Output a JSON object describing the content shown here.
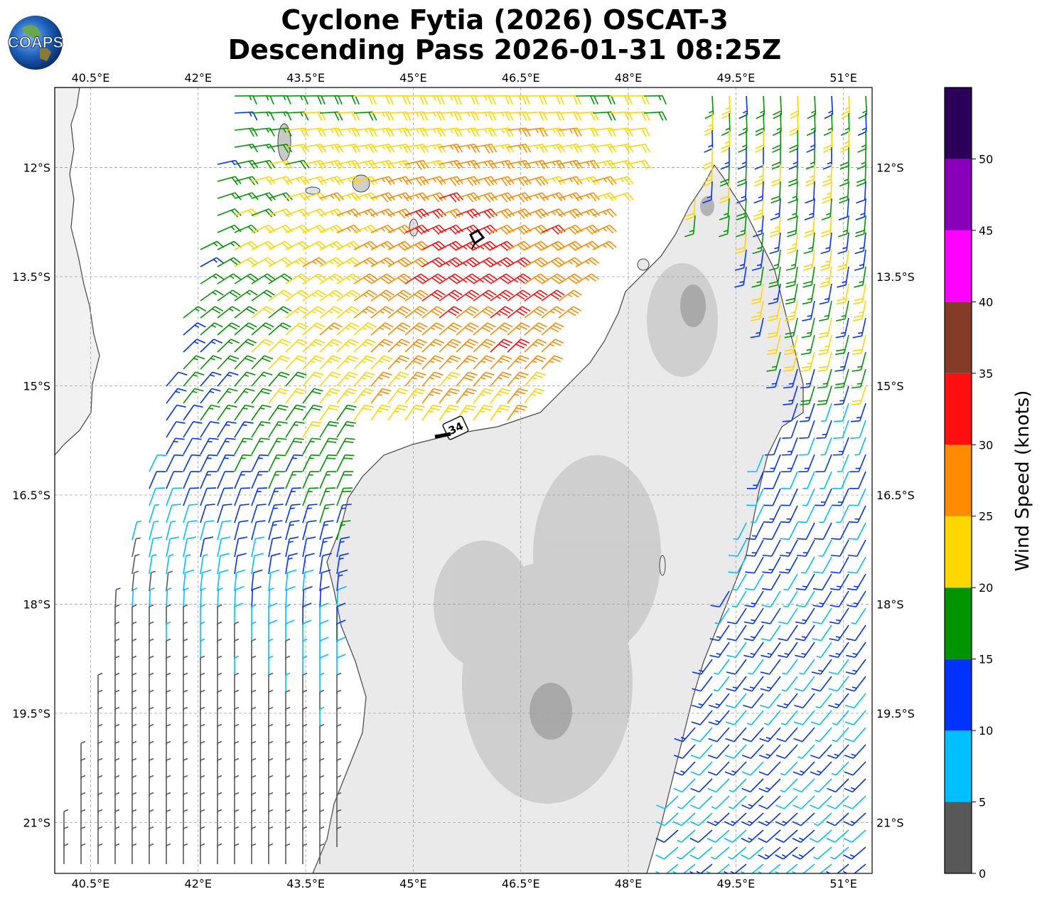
{
  "title_line1": "Cyclone Fytia (2026) OSCAT-3",
  "title_line2": "Descending Pass 2026-01-31 08:25Z",
  "logo_text": "COAPS",
  "lon_labels": [
    "40.5°E",
    "42°E",
    "43.5°E",
    "45°E",
    "46.5°E",
    "48°E",
    "49.5°E",
    "51°E"
  ],
  "lat_labels": [
    "12°S",
    "13.5°S",
    "15°S",
    "16.5°S",
    "18°S",
    "19.5°S",
    "21°S"
  ],
  "colorbar": {
    "label": "Wind Speed (knots)",
    "ticks": [
      "0",
      "5",
      "10",
      "15",
      "20",
      "25",
      "30",
      "35",
      "40",
      "45",
      "50"
    ],
    "bins": [
      {
        "from": 0,
        "to": 5,
        "color": "#585858"
      },
      {
        "from": 5,
        "to": 10,
        "color": "#00bfff"
      },
      {
        "from": 10,
        "to": 15,
        "color": "#0033ff"
      },
      {
        "from": 15,
        "to": 20,
        "color": "#009500"
      },
      {
        "from": 20,
        "to": 25,
        "color": "#ffd700"
      },
      {
        "from": 25,
        "to": 30,
        "color": "#ff8c00"
      },
      {
        "from": 30,
        "to": 35,
        "color": "#ff0f0f"
      },
      {
        "from": 35,
        "to": 40,
        "color": "#843c27"
      },
      {
        "from": 40,
        "to": 45,
        "color": "#ff00ff"
      },
      {
        "from": 45,
        "to": 50,
        "color": "#8800b8"
      },
      {
        "from": 50,
        "to": 55,
        "color": "#2a0059"
      }
    ]
  },
  "map_extent": {
    "lon_min": 40.0,
    "lon_max": 51.4,
    "lat_max": -10.9,
    "lat_min": -21.7
  },
  "storm_label": "34"
}
